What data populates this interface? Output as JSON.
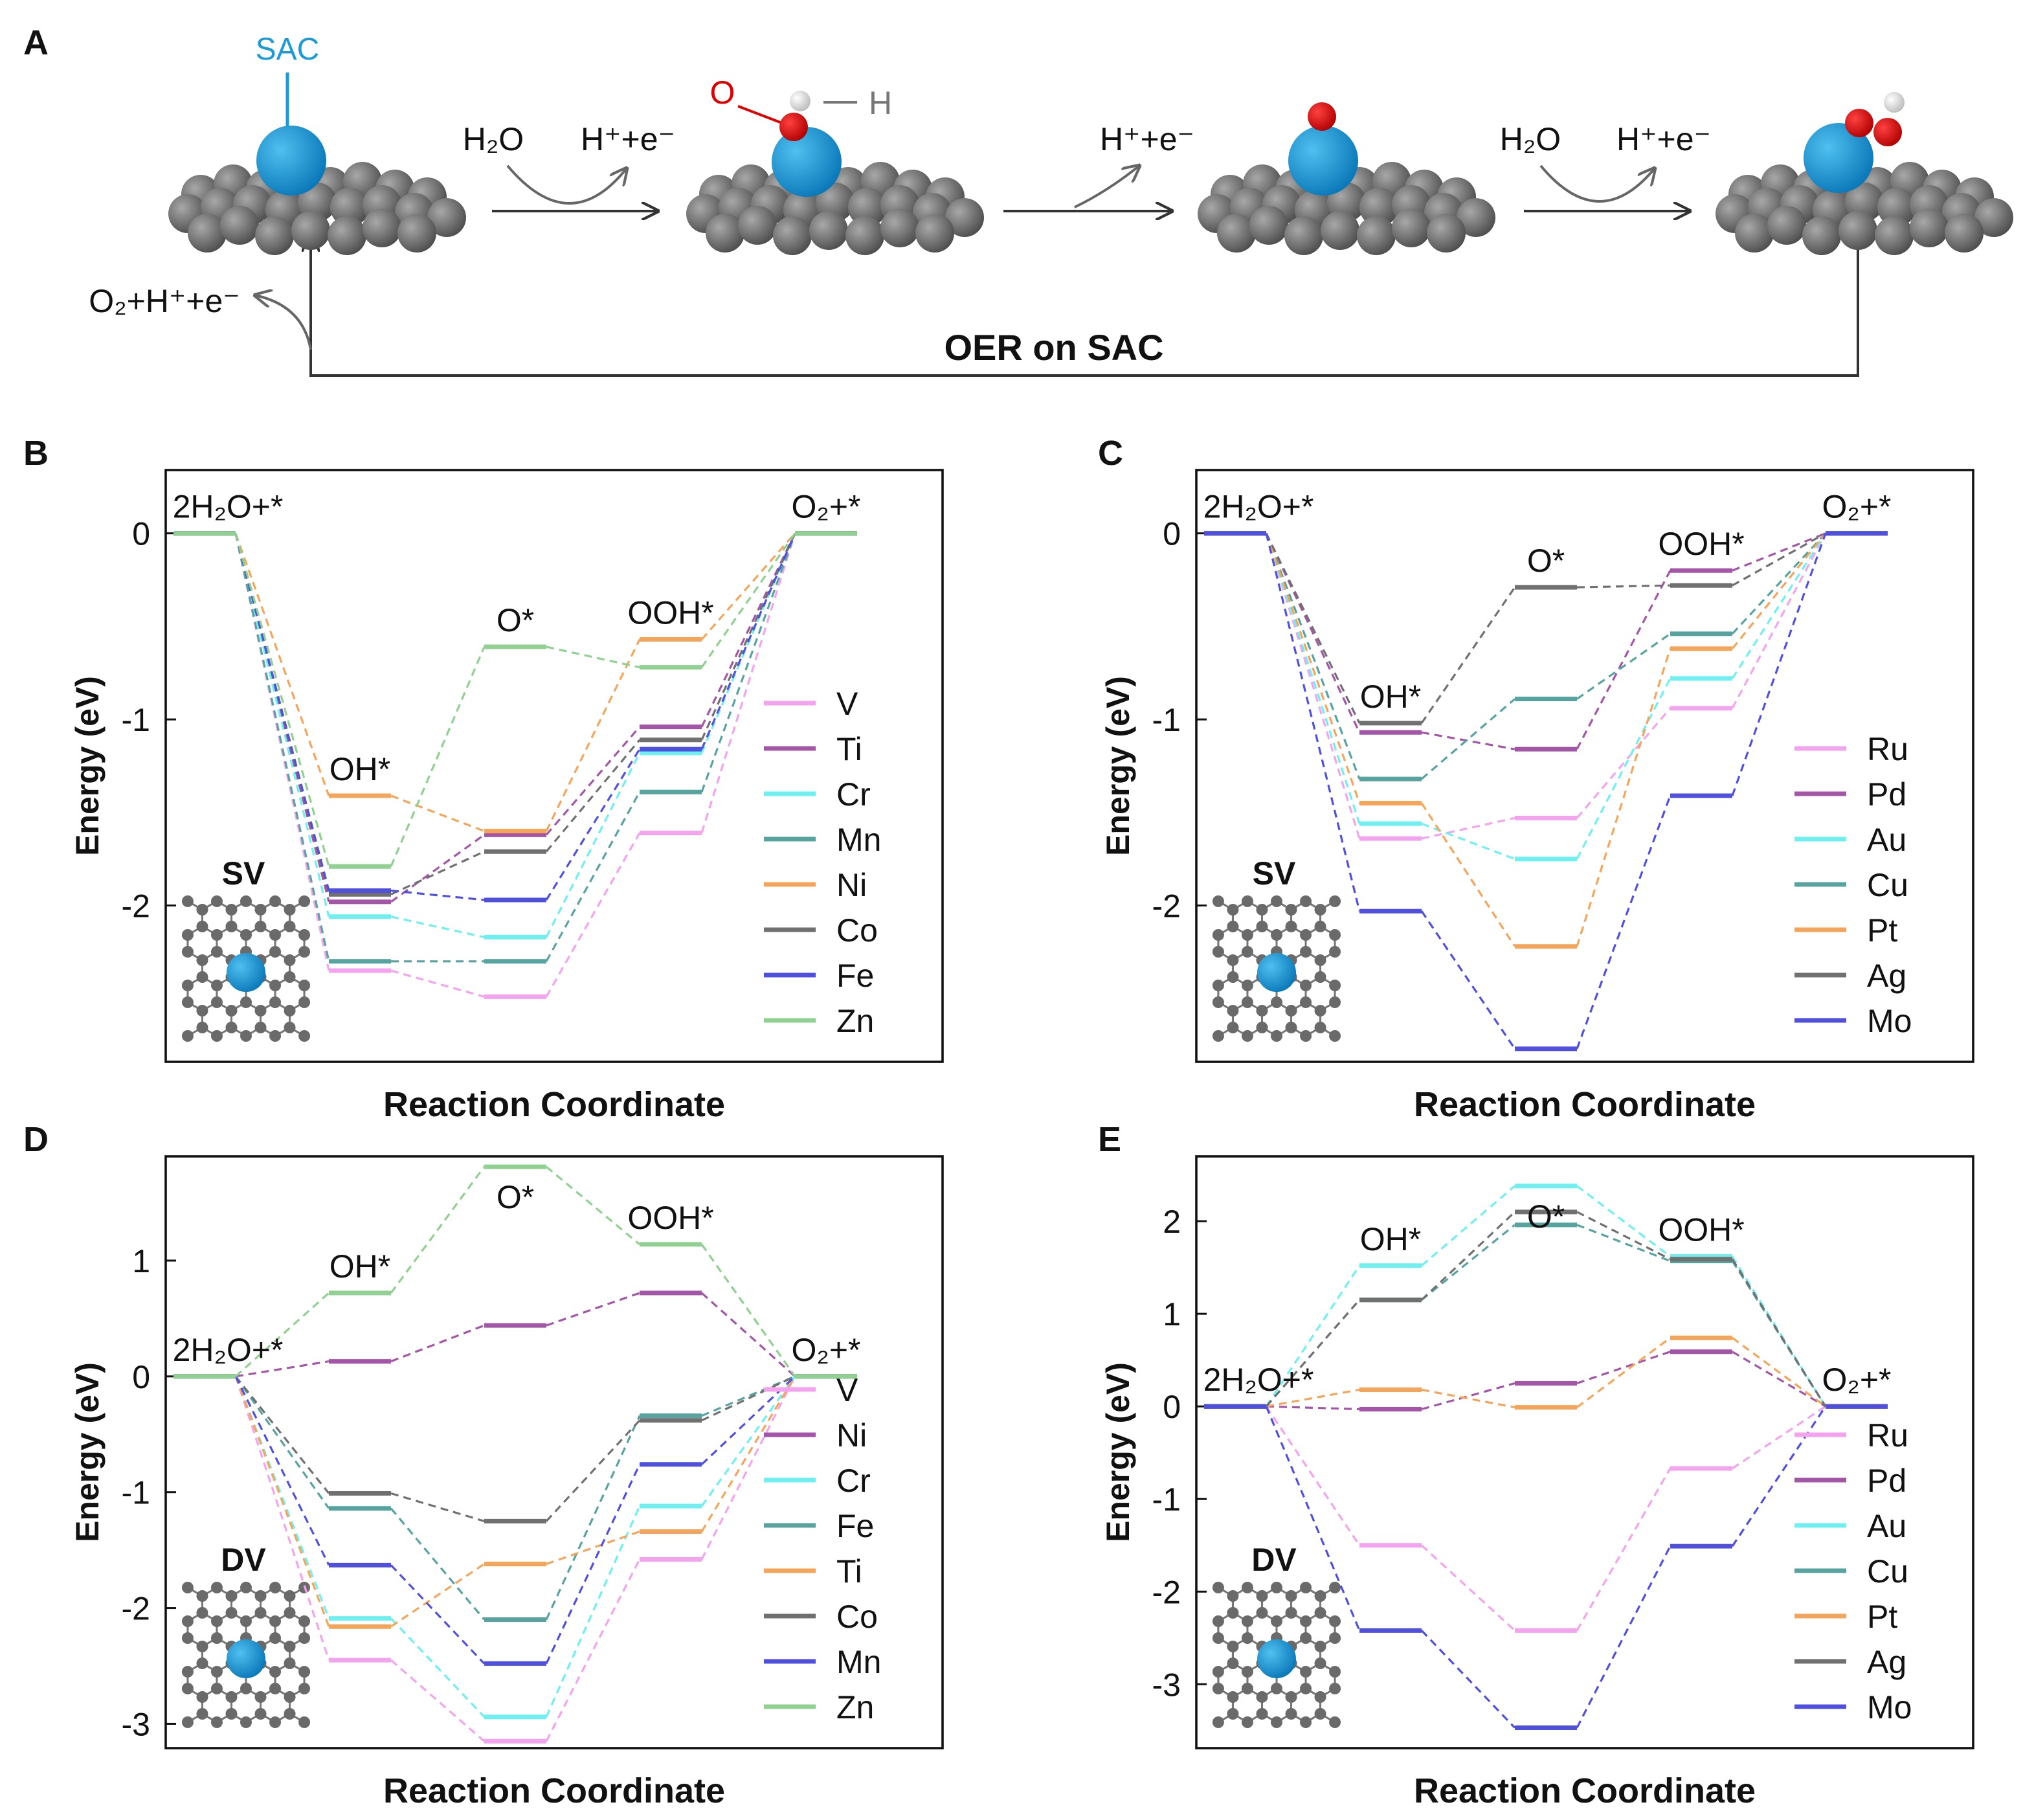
{
  "diagram": {
    "panel_label": "A",
    "sac": "SAC",
    "h2o_1": "H₂O",
    "hpe_1": "H⁺+e⁻",
    "o_atom": "O",
    "h_atom": "H",
    "hpe_2": "H⁺+e⁻",
    "h2o_2": "H₂O",
    "hpe_3": "H⁺+e⁻",
    "o2_out": "O₂+H⁺+e⁻",
    "title": "OER on SAC"
  },
  "chart_data": [
    {
      "type": "energy_levels",
      "panel_label": "B",
      "inset_label": "SV",
      "xlabel": "Reaction Coordinate",
      "ylabel": "Energy (eV)",
      "categories": [
        "2H₂O+*",
        "OH*",
        "O*",
        "OOH*",
        "O₂+*"
      ],
      "ylim": [
        -2.84,
        0.34
      ],
      "yticks": [
        0,
        -1,
        -2
      ],
      "legend": "lower right",
      "series": [
        {
          "name": "V",
          "color": "#f4a3ee",
          "values": [
            0,
            -2.35,
            -2.49,
            -1.61,
            0
          ]
        },
        {
          "name": "Ti",
          "color": "#a455a8",
          "values": [
            0,
            -1.98,
            -1.62,
            -1.04,
            0
          ]
        },
        {
          "name": "Cr",
          "color": "#6ff0f0",
          "values": [
            0,
            -2.06,
            -2.17,
            -1.18,
            0
          ]
        },
        {
          "name": "Mn",
          "color": "#56a3a0",
          "values": [
            0,
            -2.3,
            -2.3,
            -1.39,
            0
          ]
        },
        {
          "name": "Ni",
          "color": "#f5a55a",
          "values": [
            0,
            -1.41,
            -1.6,
            -0.57,
            0
          ]
        },
        {
          "name": "Co",
          "color": "#707070",
          "values": [
            0,
            -1.94,
            -1.71,
            -1.11,
            0
          ]
        },
        {
          "name": "Fe",
          "color": "#5050e0",
          "values": [
            0,
            -1.92,
            -1.97,
            -1.16,
            0
          ]
        },
        {
          "name": "Zn",
          "color": "#90d090",
          "values": [
            0,
            -1.79,
            -0.61,
            -0.72,
            0
          ]
        }
      ]
    },
    {
      "type": "energy_levels",
      "panel_label": "C",
      "inset_label": "SV",
      "xlabel": "Reaction Coordinate",
      "ylabel": "Energy (eV)",
      "categories": [
        "2H₂O+*",
        "OH*",
        "O*",
        "OOH*",
        "O₂+*"
      ],
      "ylim": [
        -2.84,
        0.34
      ],
      "yticks": [
        0,
        -1,
        -2
      ],
      "legend": "lower right",
      "series": [
        {
          "name": "Ru",
          "color": "#f4a3ee",
          "values": [
            0,
            -1.64,
            -1.53,
            -0.94,
            0
          ]
        },
        {
          "name": "Pd",
          "color": "#a455a8",
          "values": [
            0,
            -1.07,
            -1.16,
            -0.2,
            0
          ]
        },
        {
          "name": "Au",
          "color": "#6ff0f0",
          "values": [
            0,
            -1.56,
            -1.75,
            -0.78,
            0
          ]
        },
        {
          "name": "Cu",
          "color": "#56a3a0",
          "values": [
            0,
            -1.32,
            -0.89,
            -0.54,
            0
          ]
        },
        {
          "name": "Pt",
          "color": "#f5a55a",
          "values": [
            0,
            -1.45,
            -2.22,
            -0.62,
            0
          ]
        },
        {
          "name": "Ag",
          "color": "#707070",
          "values": [
            0,
            -1.02,
            -0.29,
            -0.28,
            0
          ]
        },
        {
          "name": "Mo",
          "color": "#5050e0",
          "values": [
            0,
            -2.03,
            -2.77,
            -1.41,
            0
          ]
        }
      ]
    },
    {
      "type": "energy_levels",
      "panel_label": "D",
      "inset_label": "DV",
      "xlabel": "Reaction Coordinate",
      "ylabel": "Energy (eV)",
      "categories": [
        "2H₂O+*",
        "OH*",
        "O*",
        "OOH*",
        "O₂+*"
      ],
      "ylim": [
        -3.21,
        1.9
      ],
      "yticks": [
        1,
        0,
        -1,
        -2,
        -3
      ],
      "legend": "lower right",
      "series": [
        {
          "name": "V",
          "color": "#f4a3ee",
          "values": [
            0,
            -2.45,
            -3.15,
            -1.58,
            0
          ]
        },
        {
          "name": "Ni",
          "color": "#a455a8",
          "values": [
            0,
            0.13,
            0.44,
            0.72,
            0
          ]
        },
        {
          "name": "Cr",
          "color": "#6ff0f0",
          "values": [
            0,
            -2.09,
            -2.94,
            -1.12,
            0
          ]
        },
        {
          "name": "Fe",
          "color": "#56a3a0",
          "values": [
            0,
            -1.14,
            -2.1,
            -0.34,
            0
          ]
        },
        {
          "name": "Ti",
          "color": "#f5a55a",
          "values": [
            0,
            -2.16,
            -1.62,
            -1.34,
            0
          ]
        },
        {
          "name": "Co",
          "color": "#707070",
          "values": [
            0,
            -1.01,
            -1.25,
            -0.38,
            0
          ]
        },
        {
          "name": "Mn",
          "color": "#5050e0",
          "values": [
            0,
            -1.63,
            -2.48,
            -0.76,
            0
          ]
        },
        {
          "name": "Zn",
          "color": "#90d090",
          "values": [
            0,
            0.72,
            1.81,
            1.14,
            0
          ]
        }
      ]
    },
    {
      "type": "energy_levels",
      "panel_label": "E",
      "inset_label": "DV",
      "xlabel": "Reaction Coordinate",
      "ylabel": "Energy (eV)",
      "categories": [
        "2H₂O+*",
        "OH*",
        "O*",
        "OOH*",
        "O₂+*"
      ],
      "ylim": [
        -3.69,
        2.7
      ],
      "yticks": [
        2,
        1,
        0,
        -1,
        -2,
        -3
      ],
      "legend": "lower right",
      "series": [
        {
          "name": "Ru",
          "color": "#f4a3ee",
          "values": [
            0,
            -1.5,
            -2.42,
            -0.67,
            0
          ]
        },
        {
          "name": "Pd",
          "color": "#a455a8",
          "values": [
            0,
            -0.03,
            0.25,
            0.59,
            0
          ]
        },
        {
          "name": "Au",
          "color": "#6ff0f0",
          "values": [
            0,
            1.52,
            2.38,
            1.62,
            0
          ]
        },
        {
          "name": "Cu",
          "color": "#56a3a0",
          "values": [
            0,
            1.15,
            1.96,
            1.57,
            0
          ]
        },
        {
          "name": "Pt",
          "color": "#f5a55a",
          "values": [
            0,
            0.18,
            -0.01,
            0.74,
            0
          ]
        },
        {
          "name": "Ag",
          "color": "#707070",
          "values": [
            0,
            1.15,
            2.1,
            1.59,
            0
          ]
        },
        {
          "name": "Mo",
          "color": "#5050e0",
          "values": [
            0,
            -2.42,
            -3.47,
            -1.51,
            0
          ]
        }
      ]
    }
  ]
}
